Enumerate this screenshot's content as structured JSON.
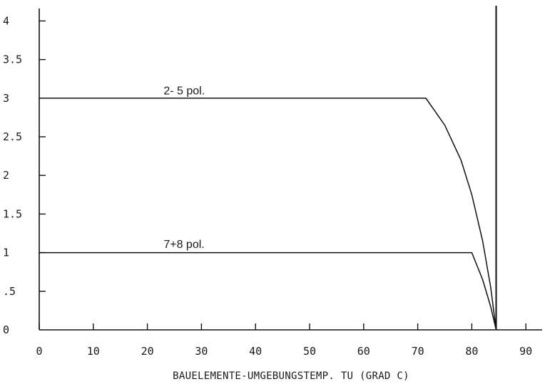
{
  "chart_data": {
    "type": "line",
    "title": "",
    "xlabel": "BAUELEMENTE-UMGEBUNGSTEMP. TU (GRAD C)",
    "ylabel": "",
    "xlim": [
      0,
      93
    ],
    "ylim": [
      0,
      4.2
    ],
    "x_ticks": [
      "0",
      "10",
      "20",
      "30",
      "40",
      "50",
      "60",
      "70",
      "80",
      "90"
    ],
    "y_ticks": [
      ".5",
      "1",
      "1.5",
      "2",
      "2.5",
      "3",
      "3.5",
      "4"
    ],
    "y_tick_values": [
      0.5,
      1,
      1.5,
      2,
      2.5,
      3,
      3.5,
      4
    ],
    "x_tick_values": [
      0,
      10,
      20,
      30,
      40,
      50,
      60,
      70,
      80,
      90
    ],
    "y_zero_label": "0",
    "grid": false,
    "vertical_limit_x": 84.5,
    "series": [
      {
        "name": "2- 5 pol.",
        "label_at": [
          23,
          3.05
        ],
        "points": [
          [
            0,
            3.0
          ],
          [
            71.5,
            3.0
          ],
          [
            75,
            2.65
          ],
          [
            78,
            2.2
          ],
          [
            80,
            1.75
          ],
          [
            82,
            1.15
          ],
          [
            83.5,
            0.55
          ],
          [
            84.5,
            0.0
          ]
        ]
      },
      {
        "name": "7+8 pol.",
        "label_at": [
          23,
          1.06
        ],
        "points": [
          [
            0,
            1.0
          ],
          [
            80,
            1.0
          ],
          [
            82,
            0.65
          ],
          [
            83.5,
            0.3
          ],
          [
            84.5,
            0.0
          ]
        ]
      }
    ]
  }
}
